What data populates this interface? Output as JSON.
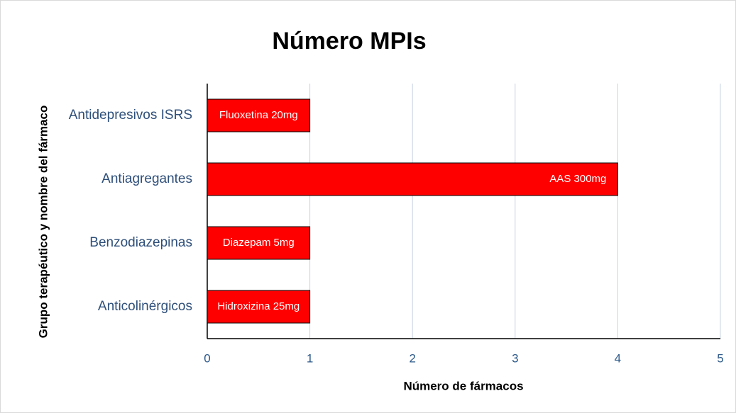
{
  "chart_data": {
    "type": "barh",
    "title": "Número MPIs",
    "xlabel": "Número de fármacos",
    "ylabel": "Grupo terapéutico y nombre del fármaco",
    "categories": [
      "Antidepresivos ISRS",
      "Antiagregantes",
      "Benzodiazepinas",
      "Anticolinérgicos"
    ],
    "values": [
      1,
      4,
      1,
      1
    ],
    "bar_labels": [
      "Fluoxetina 20mg",
      "AAS 300mg",
      "Diazepam 5mg",
      "Hidroxizina 25mg"
    ],
    "color": "#ff0000",
    "xlim": [
      0,
      5
    ],
    "xticks": [
      0,
      1,
      2,
      3,
      4,
      5
    ],
    "grid": true
  }
}
